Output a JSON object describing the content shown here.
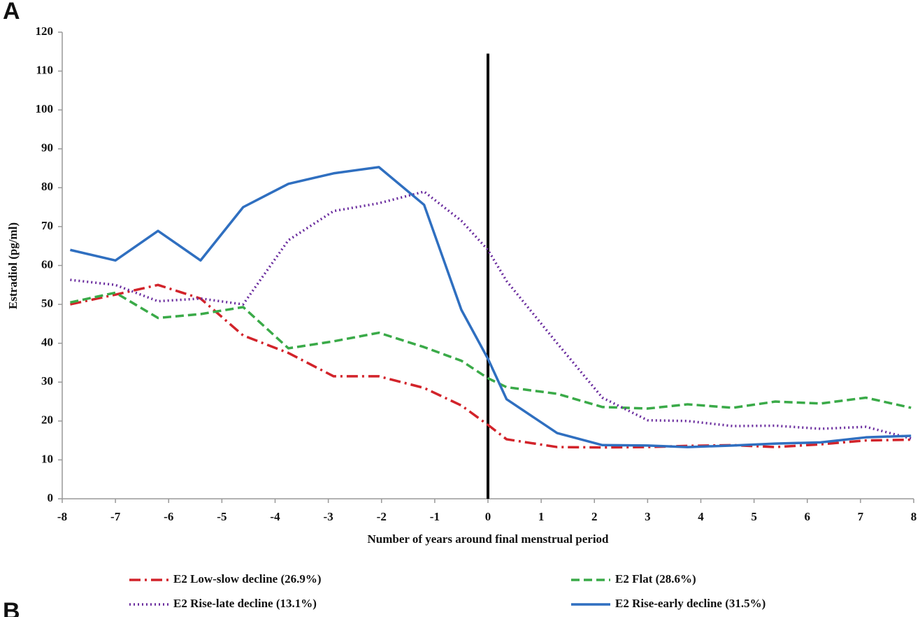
{
  "chart_data": {
    "type": "line",
    "panel_labels": [
      "A",
      "B"
    ],
    "xlabel": "Number  of years around final menstrual period",
    "ylabel": "Estradiol  (pg/ml)",
    "x": [
      -7.85,
      -7,
      -6.2,
      -5.4,
      -4.6,
      -3.75,
      -2.9,
      -2.05,
      -1.2,
      -0.5,
      0,
      0.35,
      1.3,
      2.15,
      3,
      3.75,
      4.6,
      5.4,
      6.25,
      7.1,
      7.95
    ],
    "series": [
      {
        "name": "E2 Low-slow decline (26.9%)",
        "color": "#d2232a",
        "dash": "16,6,3,6",
        "values": [
          50,
          52.5,
          55,
          51.5,
          42,
          37.5,
          31.5,
          31.5,
          28.5,
          24,
          19,
          15.3,
          13.3,
          13.2,
          13.3,
          13.6,
          13.8,
          13.3,
          14,
          15,
          15.2
        ]
      },
      {
        "name": "E2 Flat (28.6%)",
        "color": "#3aaa48",
        "dash": "12,6",
        "values": [
          50.5,
          53,
          46.5,
          47.5,
          49.3,
          38.7,
          40.5,
          42.7,
          39,
          35.5,
          31,
          28.7,
          27,
          23.6,
          23.2,
          24.3,
          23.4,
          25,
          24.5,
          26,
          23.4
        ]
      },
      {
        "name": "E2 Rise-late decline (13.1%)",
        "color": "#6a2c9e",
        "dash": "2,4",
        "values": [
          56.3,
          55,
          50.8,
          51.5,
          50,
          66.5,
          74,
          76,
          79,
          71.5,
          64,
          56,
          40,
          26,
          20.2,
          20,
          18.7,
          18.8,
          18,
          18.5,
          15.5
        ]
      },
      {
        "name": "E2 Rise-early decline (31.5%)",
        "color": "#2f6fc0",
        "dash": "none",
        "values": [
          64,
          61.3,
          68.9,
          61.3,
          75,
          81,
          83.7,
          85.3,
          75.6,
          48.6,
          36,
          25.6,
          16.9,
          13.8,
          13.7,
          13.3,
          13.7,
          14.2,
          14.5,
          15.8,
          16.2
        ]
      }
    ],
    "xlim": [
      -8,
      8
    ],
    "xticks": [
      -8,
      -7,
      -6,
      -5,
      -4,
      -3,
      -2,
      -1,
      0,
      1,
      2,
      3,
      4,
      5,
      6,
      7,
      8
    ],
    "ylim": [
      0,
      120
    ],
    "yticks": [
      0,
      10,
      20,
      30,
      40,
      50,
      60,
      70,
      80,
      90,
      100,
      110,
      120
    ],
    "vertical_line": {
      "x": 0,
      "ytop": 114.5
    },
    "legend": "bottom",
    "grid": false
  }
}
